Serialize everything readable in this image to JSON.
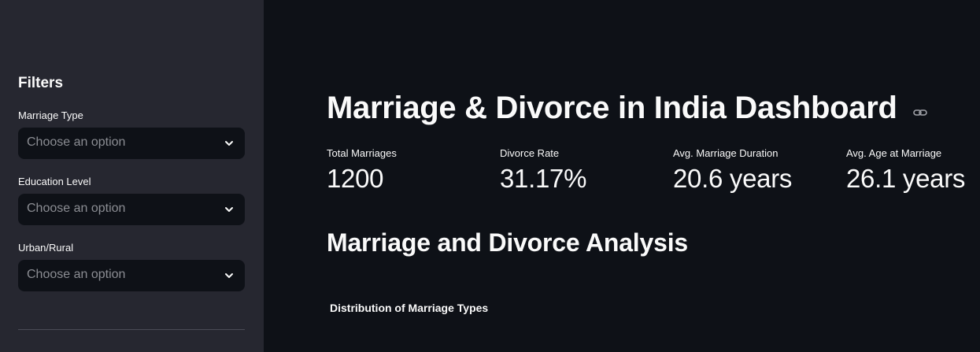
{
  "sidebar": {
    "title": "Filters",
    "filters": [
      {
        "label": "Marriage Type",
        "placeholder": "Choose an option"
      },
      {
        "label": "Education Level",
        "placeholder": "Choose an option"
      },
      {
        "label": "Urban/Rural",
        "placeholder": "Choose an option"
      }
    ]
  },
  "main": {
    "title": "Marriage & Divorce in India Dashboard",
    "metrics": [
      {
        "label": "Total Marriages",
        "value": "1200"
      },
      {
        "label": "Divorce Rate",
        "value": "31.17%"
      },
      {
        "label": "Avg. Marriage Duration",
        "value": "20.6 years"
      },
      {
        "label": "Avg. Age at Marriage",
        "value": "26.1 years"
      }
    ],
    "section_heading": "Marriage and Divorce Analysis",
    "chart_title": "Distribution of Marriage Types"
  },
  "icons": {
    "select_chevron": "chevron-down-icon",
    "anchor": "link-icon"
  },
  "colors": {
    "sidebar_bg": "#262730",
    "main_bg": "#0e1117",
    "text": "#fafafa",
    "placeholder": "#8b8d93"
  }
}
